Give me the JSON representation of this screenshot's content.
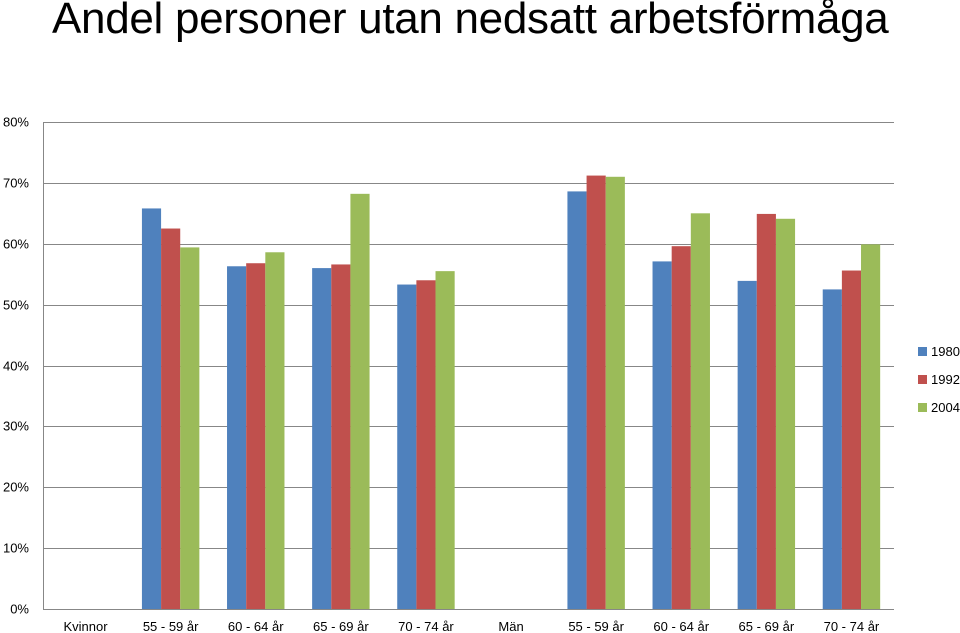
{
  "chart_data": {
    "type": "bar",
    "title": "Andel personer utan nedsatt arbetsförmåga",
    "categories": [
      "Kvinnor",
      "55 - 59 år",
      "60 - 64 år",
      "65 - 69 år",
      "70 - 74 år",
      "Män",
      "55 - 59 år",
      "60 - 64 år",
      "65 - 69 år",
      "70 - 74 år"
    ],
    "series": [
      {
        "name": "1980",
        "color": "#4F81BD",
        "values": [
          null,
          65.8,
          56.3,
          56.0,
          53.3,
          null,
          68.6,
          57.1,
          53.9,
          52.5
        ]
      },
      {
        "name": "1992",
        "color": "#C0504D",
        "values": [
          null,
          62.5,
          56.8,
          56.6,
          54.0,
          null,
          71.2,
          59.6,
          64.9,
          55.6
        ]
      },
      {
        "name": "2004",
        "color": "#9BBB59",
        "values": [
          null,
          59.4,
          58.6,
          68.2,
          55.5,
          null,
          71.0,
          65.0,
          64.1,
          59.9
        ]
      }
    ],
    "yticks": [
      "0%",
      "10%",
      "20%",
      "30%",
      "40%",
      "50%",
      "60%",
      "70%",
      "80%"
    ],
    "ylim": [
      0,
      80
    ],
    "grid": true,
    "legend_position": "right"
  }
}
